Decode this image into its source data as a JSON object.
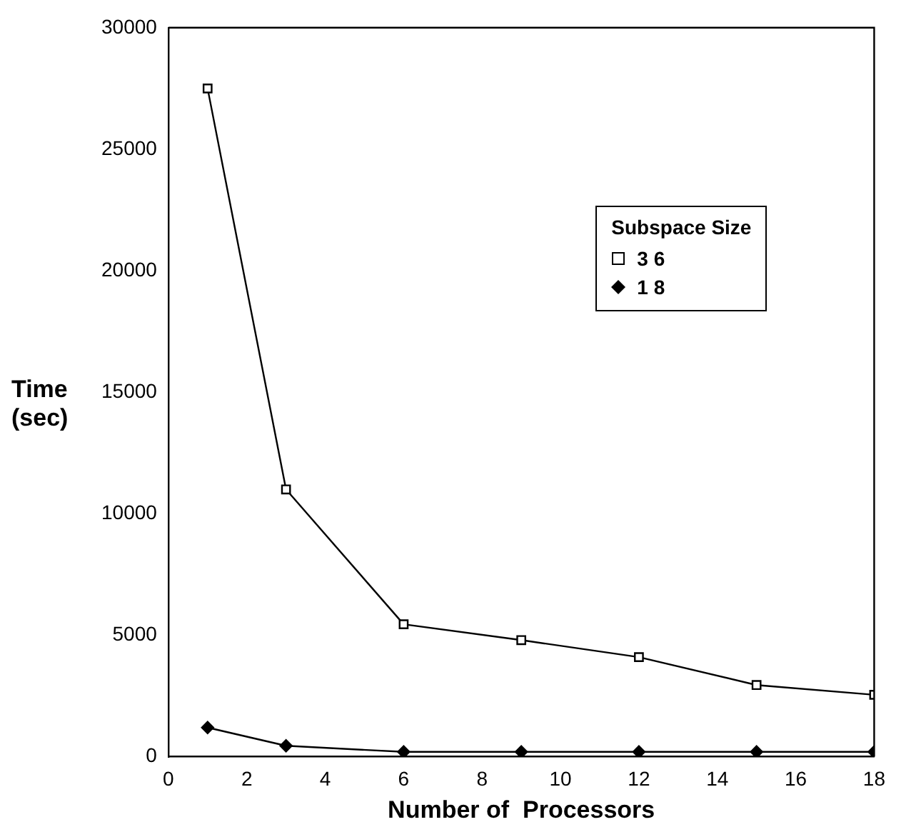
{
  "chart_data": {
    "type": "line",
    "xlabel": "Number of  Processors",
    "ylabel": "Time (sec)",
    "legend_title": "Subspace  Size",
    "legend": "top right",
    "grid": false,
    "xlim": [
      0,
      18
    ],
    "xticks": [
      0,
      2,
      4,
      6,
      8,
      10,
      12,
      14,
      16,
      18
    ],
    "ylim": [
      0,
      30000
    ],
    "yticks": [
      0,
      5000,
      10000,
      15000,
      20000,
      25000,
      30000
    ],
    "x": [
      1,
      3,
      6,
      9,
      12,
      15,
      18
    ],
    "series": [
      {
        "name": "3 6",
        "color": "#000000",
        "marker": "square",
        "values": [
          27500,
          11000,
          5450,
          4800,
          4100,
          2950,
          2550
        ]
      },
      {
        "name": "1 8",
        "color": "#000000",
        "marker": "diamond",
        "values": [
          1200,
          450,
          200,
          200,
          200,
          200,
          200
        ]
      }
    ]
  }
}
